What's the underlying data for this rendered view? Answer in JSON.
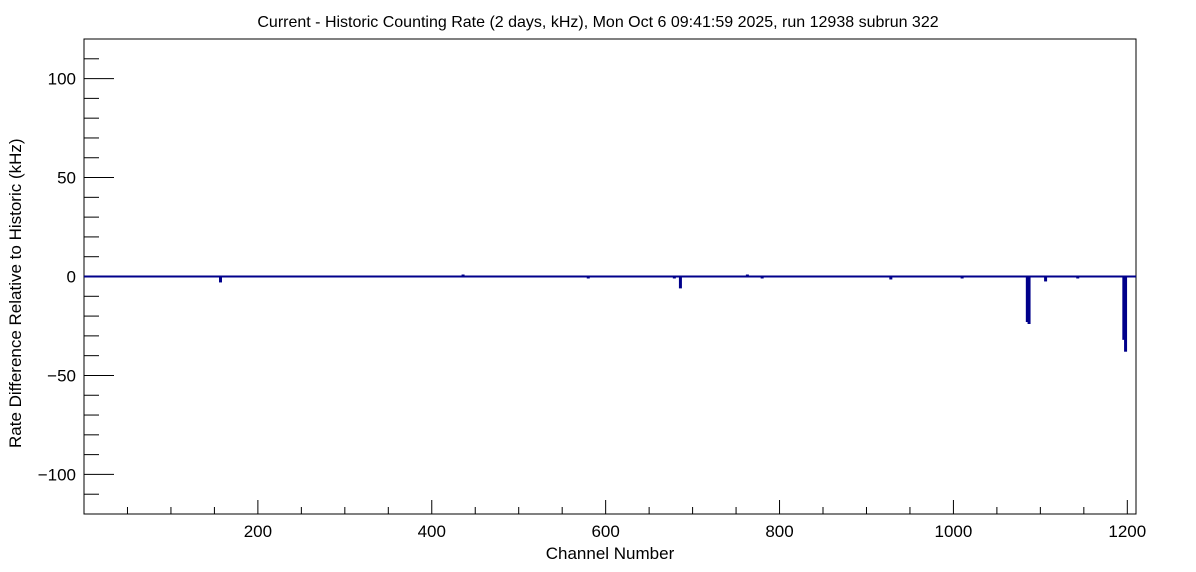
{
  "chart_data": {
    "type": "bar",
    "title": "Current - Historic Counting Rate (2 days, kHz), Mon Oct  6 09:41:59 2025, run 12938 subrun 322",
    "xlabel": "Channel Number",
    "ylabel": "Rate Difference Relative to Historic (kHz)",
    "xlim": [
      0,
      1210
    ],
    "ylim": [
      -120,
      120
    ],
    "x_ticks": [
      200,
      400,
      600,
      800,
      1000,
      1200
    ],
    "y_ticks": [
      -100,
      -50,
      0,
      50,
      100
    ],
    "x_tick_labels": [
      "200",
      "400",
      "600",
      "800",
      "1000",
      "1200"
    ],
    "y_tick_labels": [
      "−100",
      "−50",
      "0",
      "50",
      "100"
    ],
    "grid": false,
    "legend": "none",
    "series": [
      {
        "color": "#00008b",
        "baseline_range": [
          0,
          1210
        ],
        "points": [
          {
            "x": 157,
            "y": -3
          },
          {
            "x": 436,
            "y": 1
          },
          {
            "x": 580,
            "y": -1
          },
          {
            "x": 679,
            "y": -1
          },
          {
            "x": 686,
            "y": -6
          },
          {
            "x": 763,
            "y": 1
          },
          {
            "x": 780,
            "y": -1
          },
          {
            "x": 928,
            "y": -1.5
          },
          {
            "x": 1010,
            "y": -1
          },
          {
            "x": 1085,
            "y": -23
          },
          {
            "x": 1087,
            "y": -24
          },
          {
            "x": 1106,
            "y": -2.5
          },
          {
            "x": 1143,
            "y": -1
          },
          {
            "x": 1196,
            "y": -32
          },
          {
            "x": 1198,
            "y": -38
          }
        ]
      }
    ]
  }
}
